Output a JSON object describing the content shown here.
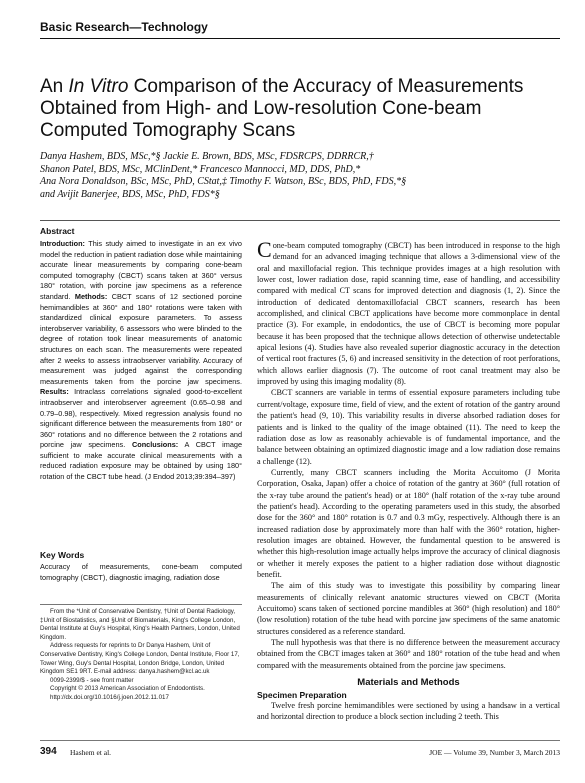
{
  "header": {
    "section": "Basic Research—Technology"
  },
  "title": {
    "before": "An",
    "italic": "In Vitro",
    "after": "Comparison of the Accuracy of Measurements Obtained from High- and Low-resolution Cone-beam Computed Tomography Scans"
  },
  "authors": [
    "Danya Hashem, BDS, MSc,*§ Jackie E. Brown, BDS, MSc, FDSRCPS, DDRRCR,†",
    "Shanon Patel, BDS, MSc, MClinDent,* Francesco Mannocci, MD, DDS, PhD,*",
    "Ana Nora Donaldson, BSc, MSc, PhD, CStat,‡ Timothy F. Watson, BSc, BDS, PhD, FDS,*§",
    "and Avijit Banerjee, BDS, MSc, PhD, FDS*§"
  ],
  "abstract": {
    "heading": "Abstract",
    "sections": [
      {
        "label": "Introduction:",
        "text": "This study aimed to investigate in an ex vivo model the reduction in patient radiation dose while maintaining accurate linear measurements by comparing cone-beam computed tomography (CBCT) scans taken at 360° versus 180° rotation, with porcine jaw specimens as a reference standard."
      },
      {
        "label": "Methods:",
        "text": "CBCT scans of 12 sectioned porcine hemimandibles at 360° and 180° rotations were taken with standardized clinical exposure parameters. To assess interobserver variability, 6 assessors who were blinded to the degree of rotation took linear measurements of anatomic structures on each scan. The measurements were repeated after 2 weeks to assess intraobserver variability. Accuracy of measurement was judged against the corresponding measurements taken from the porcine jaw specimens."
      },
      {
        "label": "Results:",
        "text": "Intraclass correlations signaled good-to-excellent intraobserver and interobserver agreement (0.65–0.98 and 0.79–0.98), respectively. Mixed regression analysis found no significant difference between the measurements from 180° or 360° rotations and no difference between the 2 rotations and porcine jaw specimens."
      },
      {
        "label": "Conclusions:",
        "text": "A CBCT image sufficient to make accurate clinical measurements with a reduced radiation exposure may be obtained by using 180° rotation of the CBCT tube head. (J Endod 2013;39:394–397)"
      }
    ]
  },
  "keywords": {
    "heading": "Key Words",
    "text": "Accuracy of measurements, cone-beam computed tomography (CBCT), diagnostic imaging, radiation dose"
  },
  "footnotes": [
    "From the *Unit of Conservative Dentistry, †Unit of Dental Radiology, ‡Unit of Biostatistics, and §Unit of Biomaterials, King's College London, Dental Institute at Guy's Hospital, King's Health Partners, London, United Kingdom.",
    "Address requests for reprints to Dr Danya Hashem, Unit of Conservative Dentistry, King's College London, Dental Institute, Floor 17, Tower Wing, Guy's Dental Hospital, London Bridge, London, United Kingdom SE1 9RT. E-mail address: danya.hashem@kcl.ac.uk",
    "0099-2399/$ - see front matter",
    "Copyright © 2013 American Association of Endodontists.",
    "http://dx.doi.org/10.1016/j.joen.2012.11.017"
  ],
  "body": {
    "paragraphs": [
      "Cone-beam computed tomography (CBCT) has been introduced in response to the high demand for an advanced imaging technique that allows a 3-dimensional view of the oral and maxillofacial region. This technique provides images at a high resolution with lower cost, lower radiation dose, rapid scanning time, ease of handling, and accessibility compared with medical CT scans for improved detection and diagnosis (1, 2). Since the introduction of dedicated dentomaxillofacial CBCT scanners, research has been accomplished, and clinical CBCT applications have become more commonplace in dental practice (3). For example, in endodontics, the use of CBCT is becoming more popular because it has been proposed that the technique allows detection of otherwise undetectable apical lesions (4). Studies have also revealed superior diagnostic accuracy in the detection of vertical root fractures (5, 6) and increased sensitivity in the detection of root perforations, which allows earlier diagnosis (7). The outcome of root canal treatment may also be improved by using this imaging modality (8).",
      "CBCT scanners are variable in terms of essential exposure parameters including tube current/voltage, exposure time, field of view, and the extent of rotation of the gantry around the patient's head (9, 10). This variability results in diverse absorbed radiation doses for patients and is linked to the quality of the image obtained (11). The need to keep the radiation dose as low as reasonably achievable is of fundamental importance, and the balance between obtaining an optimized diagnostic image and a low radiation dose remains a challenge (12).",
      "Currently, many CBCT scanners including the Morita Accuitomo (J Morita Corporation, Osaka, Japan) offer a choice of rotation of the gantry at 360° (full rotation of the x-ray tube around the patient's head) or at 180° (half rotation of the x-ray tube around the patient's head). According to the operating parameters used in this study, the absorbed dose for the 360° and 180° rotation is 0.7 and 0.3 mGy, respectively. Although there is an increased radiation dose by approximately more than half with the 360° rotation, higher-resolution images are obtained. However, the fundamental question to be answered is whether this high-resolution image actually helps improve the accuracy of clinical diagnosis or whether it merely exposes the patient to a higher radiation dose without diagnostic benefit.",
      "The aim of this study was to investigate this possibility by comparing linear measurements of clinically relevant anatomic structures viewed on CBCT (Morita Accuitomo) scans taken of sectioned porcine mandibles at 360° (high resolution) and 180° (low resolution) rotation of the tube head with porcine jaw specimens of the same anatomic structures considered as a reference standard.",
      "The null hypothesis was that there is no difference between the measurement accuracy obtained from the CBCT images taken at 360° and 180° rotation of the tube head and when compared with the measurements obtained from the porcine jaw specimens."
    ],
    "section_heading": "Materials and Methods",
    "subheading": "Specimen Preparation",
    "section_text": "Twelve fresh porcine hemimandibles were sectioned by using a handsaw in a vertical and horizontal direction to produce a block section including 2 teeth. This"
  },
  "footer": {
    "page": "394",
    "authors": "Hashem et al.",
    "journal": "JOE — Volume 39, Number 3, March 2013"
  }
}
